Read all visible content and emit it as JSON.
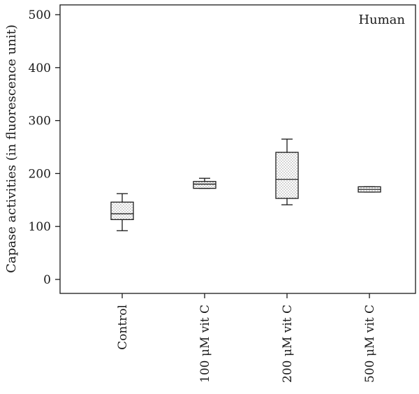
{
  "chart_data": {
    "type": "box",
    "annotation": "Human",
    "ylabel": "Capase activities (in fluorescence unit)",
    "xlabel": "",
    "ylim": [
      0,
      500
    ],
    "yticks": [
      0,
      100,
      200,
      300,
      400,
      500
    ],
    "ytick_labels": [
      "0",
      "100",
      "200",
      "300",
      "400",
      "500"
    ],
    "categories": [
      "Control",
      "100 μM vit C",
      "200 μM vit C",
      "500 μM vit C"
    ],
    "boxes": [
      {
        "min": 92,
        "q1": 113,
        "median": 124,
        "q3": 146,
        "max": 162
      },
      {
        "min": 172,
        "q1": 172,
        "median": 180,
        "q3": 185,
        "max": 191
      },
      {
        "min": 141,
        "q1": 153,
        "median": 189,
        "q3": 240,
        "max": 265
      },
      {
        "min": 165,
        "q1": 165,
        "median": 170,
        "q3": 175,
        "max": 175
      }
    ],
    "grid": false,
    "legend_position": "top-right"
  }
}
